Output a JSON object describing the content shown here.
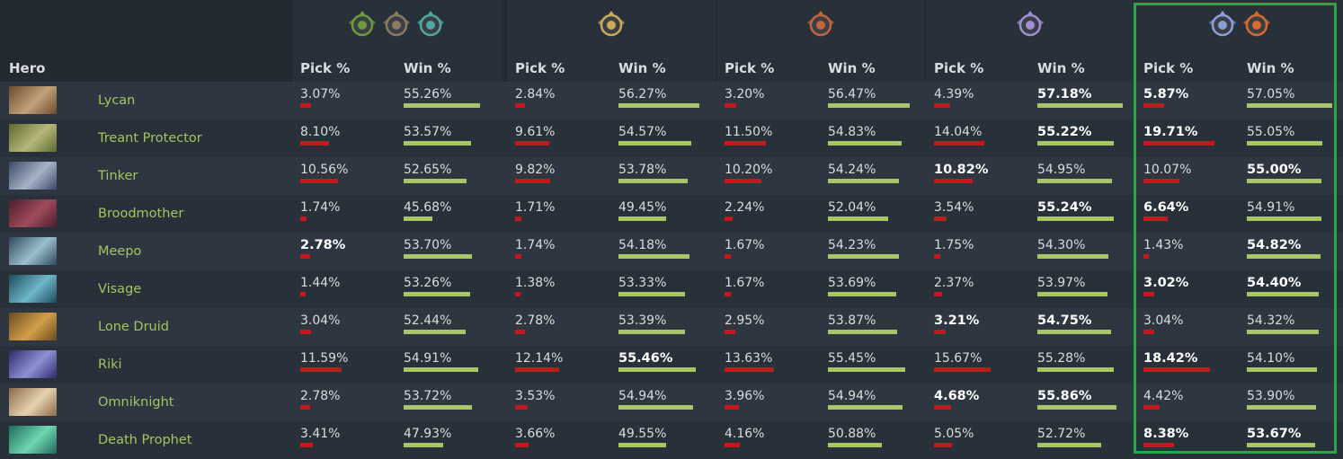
{
  "header": {
    "hero_label": "Hero",
    "pick_label": "Pick %",
    "win_label": "Win %"
  },
  "brackets": [
    {
      "medals": [
        "herald-medal-icon",
        "guardian-medal-icon",
        "crusader-medal-icon"
      ],
      "colors": [
        "#6e9a3a",
        "#8a7a62",
        "#4fa9a2"
      ]
    },
    {
      "medals": [
        "archon-medal-icon"
      ],
      "colors": [
        "#c9a95a"
      ]
    },
    {
      "medals": [
        "legend-medal-icon"
      ],
      "colors": [
        "#c2643c"
      ]
    },
    {
      "medals": [
        "ancient-medal-icon"
      ],
      "colors": [
        "#9f8ed1"
      ]
    },
    {
      "medals": [
        "divine-medal-icon",
        "immortal-medal-icon"
      ],
      "colors": [
        "#8b9ed6",
        "#d86a2e"
      ]
    }
  ],
  "highlighted_bracket": 4,
  "colors": {
    "hero_name": "#a6c45e",
    "pick_bar": "#c8161d",
    "win_bar": "#a8c665",
    "highlight_border": "#27a844"
  },
  "heroes": [
    {
      "name": "Lycan",
      "portrait": [
        "#6b4a2c",
        "#c2a27a"
      ],
      "stats": [
        {
          "pick": "3.07%",
          "pick_v": 3.07,
          "win": "55.26%",
          "win_v": 55.26
        },
        {
          "pick": "2.84%",
          "pick_v": 2.84,
          "win": "56.27%",
          "win_v": 56.27
        },
        {
          "pick": "3.20%",
          "pick_v": 3.2,
          "win": "56.47%",
          "win_v": 56.47
        },
        {
          "pick": "4.39%",
          "pick_v": 4.39,
          "win": "57.18%",
          "win_v": 57.18,
          "win_bold": true
        },
        {
          "pick": "5.87%",
          "pick_v": 5.87,
          "win": "57.05%",
          "win_v": 57.05,
          "pick_bold": true
        }
      ]
    },
    {
      "name": "Treant Protector",
      "portrait": [
        "#5e6a2e",
        "#b6b77a"
      ],
      "stats": [
        {
          "pick": "8.10%",
          "pick_v": 8.1,
          "win": "53.57%",
          "win_v": 53.57
        },
        {
          "pick": "9.61%",
          "pick_v": 9.61,
          "win": "54.57%",
          "win_v": 54.57
        },
        {
          "pick": "11.50%",
          "pick_v": 11.5,
          "win": "54.83%",
          "win_v": 54.83
        },
        {
          "pick": "14.04%",
          "pick_v": 14.04,
          "win": "55.22%",
          "win_v": 55.22,
          "win_bold": true
        },
        {
          "pick": "19.71%",
          "pick_v": 19.71,
          "win": "55.05%",
          "win_v": 55.05,
          "pick_bold": true
        }
      ]
    },
    {
      "name": "Tinker",
      "portrait": [
        "#3b4a6a",
        "#a7b3c8"
      ],
      "stats": [
        {
          "pick": "10.56%",
          "pick_v": 10.56,
          "win": "52.65%",
          "win_v": 52.65
        },
        {
          "pick": "9.82%",
          "pick_v": 9.82,
          "win": "53.78%",
          "win_v": 53.78
        },
        {
          "pick": "10.20%",
          "pick_v": 10.2,
          "win": "54.24%",
          "win_v": 54.24
        },
        {
          "pick": "10.82%",
          "pick_v": 10.82,
          "win": "54.95%",
          "win_v": 54.95,
          "pick_bold": true
        },
        {
          "pick": "10.07%",
          "pick_v": 10.07,
          "win": "55.00%",
          "win_v": 55.0,
          "win_bold": true
        }
      ]
    },
    {
      "name": "Broodmother",
      "portrait": [
        "#4a1e2c",
        "#a04a5a"
      ],
      "stats": [
        {
          "pick": "1.74%",
          "pick_v": 1.74,
          "win": "45.68%",
          "win_v": 45.68
        },
        {
          "pick": "1.71%",
          "pick_v": 1.71,
          "win": "49.45%",
          "win_v": 49.45
        },
        {
          "pick": "2.24%",
          "pick_v": 2.24,
          "win": "52.04%",
          "win_v": 52.04
        },
        {
          "pick": "3.54%",
          "pick_v": 3.54,
          "win": "55.24%",
          "win_v": 55.24,
          "win_bold": true
        },
        {
          "pick": "6.64%",
          "pick_v": 6.64,
          "win": "54.91%",
          "win_v": 54.91,
          "pick_bold": true
        }
      ]
    },
    {
      "name": "Meepo",
      "portrait": [
        "#2c4a5c",
        "#9bbfcc"
      ],
      "stats": [
        {
          "pick": "2.78%",
          "pick_v": 2.78,
          "win": "53.70%",
          "win_v": 53.7,
          "pick_bold": true
        },
        {
          "pick": "1.74%",
          "pick_v": 1.74,
          "win": "54.18%",
          "win_v": 54.18
        },
        {
          "pick": "1.67%",
          "pick_v": 1.67,
          "win": "54.23%",
          "win_v": 54.23
        },
        {
          "pick": "1.75%",
          "pick_v": 1.75,
          "win": "54.30%",
          "win_v": 54.3
        },
        {
          "pick": "1.43%",
          "pick_v": 1.43,
          "win": "54.82%",
          "win_v": 54.82,
          "win_bold": true
        }
      ]
    },
    {
      "name": "Visage",
      "portrait": [
        "#1e4a5e",
        "#6fb6c9"
      ],
      "stats": [
        {
          "pick": "1.44%",
          "pick_v": 1.44,
          "win": "53.26%",
          "win_v": 53.26
        },
        {
          "pick": "1.38%",
          "pick_v": 1.38,
          "win": "53.33%",
          "win_v": 53.33
        },
        {
          "pick": "1.67%",
          "pick_v": 1.67,
          "win": "53.69%",
          "win_v": 53.69
        },
        {
          "pick": "2.37%",
          "pick_v": 2.37,
          "win": "53.97%",
          "win_v": 53.97
        },
        {
          "pick": "3.02%",
          "pick_v": 3.02,
          "win": "54.40%",
          "win_v": 54.4,
          "pick_bold": true,
          "win_bold": true
        }
      ]
    },
    {
      "name": "Lone Druid",
      "portrait": [
        "#6a4a1e",
        "#d2a04a"
      ],
      "stats": [
        {
          "pick": "3.04%",
          "pick_v": 3.04,
          "win": "52.44%",
          "win_v": 52.44
        },
        {
          "pick": "2.78%",
          "pick_v": 2.78,
          "win": "53.39%",
          "win_v": 53.39
        },
        {
          "pick": "2.95%",
          "pick_v": 2.95,
          "win": "53.87%",
          "win_v": 53.87
        },
        {
          "pick": "3.21%",
          "pick_v": 3.21,
          "win": "54.75%",
          "win_v": 54.75,
          "pick_bold": true,
          "win_bold": true
        },
        {
          "pick": "3.04%",
          "pick_v": 3.04,
          "win": "54.32%",
          "win_v": 54.32
        }
      ]
    },
    {
      "name": "Riki",
      "portrait": [
        "#2c2c6a",
        "#8f8fd6"
      ],
      "stats": [
        {
          "pick": "11.59%",
          "pick_v": 11.59,
          "win": "54.91%",
          "win_v": 54.91
        },
        {
          "pick": "12.14%",
          "pick_v": 12.14,
          "win": "55.46%",
          "win_v": 55.46,
          "win_bold": true
        },
        {
          "pick": "13.63%",
          "pick_v": 13.63,
          "win": "55.45%",
          "win_v": 55.45
        },
        {
          "pick": "15.67%",
          "pick_v": 15.67,
          "win": "55.28%",
          "win_v": 55.28
        },
        {
          "pick": "18.42%",
          "pick_v": 18.42,
          "win": "54.10%",
          "win_v": 54.1,
          "pick_bold": true
        }
      ]
    },
    {
      "name": "Omniknight",
      "portrait": [
        "#8a6a4a",
        "#e6d2b0"
      ],
      "stats": [
        {
          "pick": "2.78%",
          "pick_v": 2.78,
          "win": "53.72%",
          "win_v": 53.72
        },
        {
          "pick": "3.53%",
          "pick_v": 3.53,
          "win": "54.94%",
          "win_v": 54.94
        },
        {
          "pick": "3.96%",
          "pick_v": 3.96,
          "win": "54.94%",
          "win_v": 54.94
        },
        {
          "pick": "4.68%",
          "pick_v": 4.68,
          "win": "55.86%",
          "win_v": 55.86,
          "pick_bold": true,
          "win_bold": true
        },
        {
          "pick": "4.42%",
          "pick_v": 4.42,
          "win": "53.90%",
          "win_v": 53.9
        }
      ]
    },
    {
      "name": "Death Prophet",
      "portrait": [
        "#1e6a5c",
        "#6fd6b0"
      ],
      "stats": [
        {
          "pick": "3.41%",
          "pick_v": 3.41,
          "win": "47.93%",
          "win_v": 47.93
        },
        {
          "pick": "3.66%",
          "pick_v": 3.66,
          "win": "49.55%",
          "win_v": 49.55
        },
        {
          "pick": "4.16%",
          "pick_v": 4.16,
          "win": "50.88%",
          "win_v": 50.88
        },
        {
          "pick": "5.05%",
          "pick_v": 5.05,
          "win": "52.72%",
          "win_v": 52.72
        },
        {
          "pick": "8.38%",
          "pick_v": 8.38,
          "win": "53.67%",
          "win_v": 53.67,
          "pick_bold": true,
          "win_bold": true
        }
      ]
    }
  ]
}
